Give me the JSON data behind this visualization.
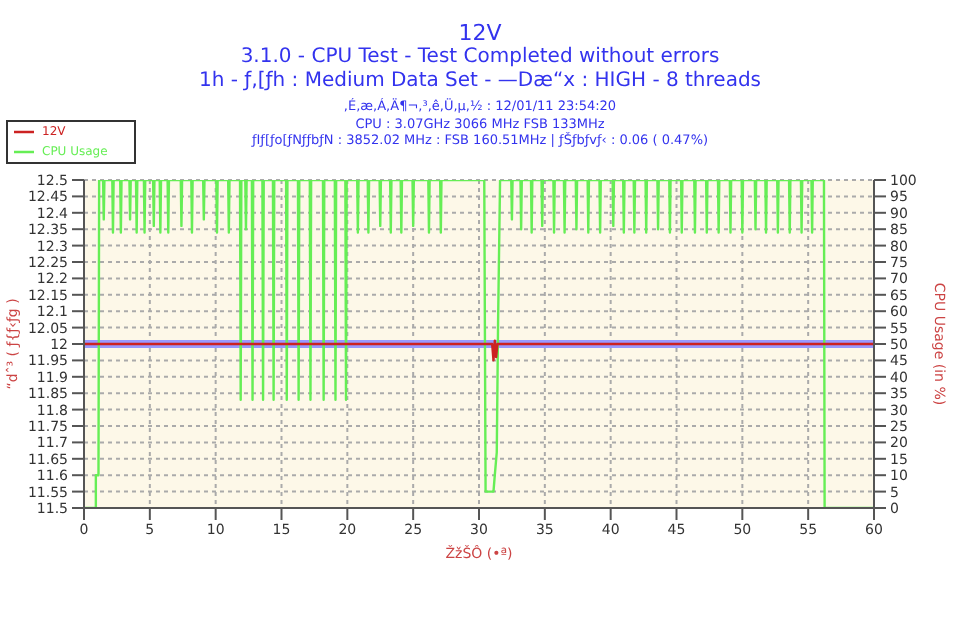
{
  "chart_data": {
    "type": "line",
    "title": "12V",
    "subtitle": "3.1.0 - CPU Test - Test Completed without errors\n1h - ƒ‚[ƒh : Medium Data Set - —Dæ“x : HIGH - 8 threads",
    "annotations": [
      ",É,æ,Á,Ä¶¬,³,ê,Ü,µ,½ : 12/01/11 23:54:20",
      "CPU : 3.07GHz 3066 MHz FSB 133MHz",
      "ƒIƒ[ƒo[ƒNƒƒbƒN : 3852.02 MHz : FSB 160.51MHz | ƒŠƒbƒvƒ‹ : 0.06 ( 0.47%)"
    ],
    "xlabel": "ŽžŠÔ (•ª)",
    "ylabel": "“dˆ³ ( ƒ{ƒ‹ƒg )",
    "y2label": "CPU Usage (in %)",
    "xlim": [
      0,
      60
    ],
    "xticks": [
      0,
      5,
      10,
      15,
      20,
      25,
      30,
      35,
      40,
      45,
      50,
      55,
      60
    ],
    "ylim": [
      11.5,
      12.5
    ],
    "yticks": [
      11.5,
      11.55,
      11.6,
      11.65,
      11.7,
      11.75,
      11.8,
      11.85,
      11.9,
      11.95,
      12,
      12.05,
      12.1,
      12.15,
      12.2,
      12.25,
      12.3,
      12.35,
      12.4,
      12.45,
      12.5
    ],
    "y2lim": [
      0,
      100
    ],
    "y2ticks": [
      0,
      5,
      10,
      15,
      20,
      25,
      30,
      35,
      40,
      45,
      50,
      55,
      60,
      65,
      70,
      75,
      80,
      85,
      90,
      95,
      100
    ],
    "grid": true,
    "legend": "top left",
    "ref_lines": [
      {
        "axis": "y",
        "value": 12,
        "color": "#9999ff"
      }
    ],
    "series": [
      {
        "name": "CPU Usage",
        "color": "#66ee55",
        "axis": "y2",
        "x": [
          0,
          0.9,
          0.9,
          1.1,
          1.15,
          1.45,
          1.5,
          1.55,
          2.15,
          2.2,
          2.25,
          2.75,
          2.8,
          2.85,
          3.45,
          3.5,
          3.55,
          3.95,
          4.0,
          4.05,
          4.55,
          4.6,
          4.65,
          5.25,
          5.3,
          5.35,
          5.75,
          5.8,
          5.85,
          6.35,
          6.4,
          6.45,
          7.35,
          7.4,
          7.45,
          8.15,
          8.2,
          8.25,
          9.05,
          9.1,
          9.15,
          10.05,
          10.1,
          10.15,
          10.95,
          11.0,
          11.05,
          11.85,
          11.9,
          11.95,
          12.25,
          12.3,
          12.35,
          12.75,
          12.8,
          12.85,
          13.55,
          13.6,
          13.65,
          14.35,
          14.4,
          14.45,
          15.35,
          15.4,
          15.45,
          16.25,
          16.3,
          16.35,
          17.15,
          17.2,
          17.25,
          18.15,
          18.2,
          18.25,
          19.05,
          19.1,
          19.15,
          19.85,
          19.9,
          19.95,
          20.75,
          20.8,
          20.85,
          21.55,
          21.6,
          21.65,
          22.45,
          22.5,
          22.55,
          23.25,
          23.3,
          23.35,
          24.05,
          24.1,
          24.15,
          24.95,
          25.0,
          25.05,
          26.15,
          26.2,
          26.25,
          27.05,
          27.1,
          27.15,
          30.4,
          30.5,
          31.1,
          31.2,
          31.35,
          31.45,
          31.6,
          32.45,
          32.5,
          32.55,
          33.15,
          33.2,
          33.25,
          33.95,
          34.0,
          34.05,
          34.75,
          34.8,
          34.85,
          35.65,
          35.7,
          35.75,
          36.45,
          36.5,
          36.55,
          37.35,
          37.4,
          37.45,
          38.25,
          38.3,
          38.35,
          39.15,
          39.2,
          39.25,
          40.15,
          40.2,
          40.25,
          40.95,
          41.0,
          41.05,
          41.75,
          41.8,
          41.85,
          42.65,
          42.7,
          42.75,
          43.55,
          43.6,
          43.65,
          44.45,
          44.5,
          44.55,
          45.35,
          45.4,
          45.45,
          46.35,
          46.4,
          46.45,
          47.25,
          47.3,
          47.35,
          48.15,
          48.2,
          48.25,
          49.05,
          49.1,
          49.15,
          49.95,
          50.0,
          50.05,
          50.95,
          51.0,
          51.05,
          51.75,
          51.8,
          51.85,
          52.65,
          52.7,
          52.75,
          53.55,
          53.6,
          53.65,
          54.45,
          54.5,
          54.55,
          55.25,
          55.3,
          55.35,
          56.2,
          56.25,
          60
        ],
        "values": [
          0,
          0,
          10,
          10,
          100,
          100,
          88,
          100,
          100,
          84,
          100,
          100,
          84,
          100,
          100,
          88,
          100,
          100,
          84,
          100,
          100,
          84,
          100,
          100,
          86,
          100,
          100,
          84,
          100,
          100,
          84,
          100,
          100,
          86,
          100,
          100,
          84,
          100,
          100,
          88,
          100,
          100,
          84,
          100,
          100,
          84,
          100,
          100,
          33,
          100,
          100,
          85,
          100,
          100,
          33,
          100,
          100,
          33,
          100,
          100,
          33,
          100,
          100,
          33,
          100,
          100,
          33,
          100,
          100,
          33,
          100,
          100,
          33,
          100,
          100,
          33,
          100,
          100,
          33,
          100,
          100,
          84,
          100,
          100,
          84,
          100,
          100,
          86,
          100,
          100,
          84,
          100,
          100,
          84,
          100,
          100,
          86,
          100,
          100,
          84,
          100,
          100,
          84,
          100,
          100,
          5,
          5,
          10,
          17,
          57,
          100,
          100,
          88,
          100,
          100,
          85,
          100,
          100,
          84,
          100,
          100,
          86,
          100,
          100,
          84,
          100,
          100,
          84,
          100,
          100,
          85,
          100,
          100,
          84,
          100,
          100,
          84,
          100,
          100,
          86,
          100,
          100,
          84,
          100,
          100,
          84,
          100,
          100,
          84,
          100,
          100,
          85,
          100,
          100,
          84,
          100,
          100,
          84,
          100,
          100,
          84,
          100,
          100,
          84,
          100,
          100,
          84,
          100,
          100,
          84,
          100,
          100,
          84,
          100,
          100,
          85,
          100,
          100,
          84,
          100,
          100,
          84,
          100,
          100,
          84,
          100,
          100,
          84,
          100,
          100,
          84,
          100,
          100,
          0,
          0
        ]
      },
      {
        "name": "12V",
        "color": "#cc2222",
        "x": [
          0,
          31,
          31.1,
          31.2,
          31.3,
          31.4,
          31.5,
          60
        ],
        "values": [
          12,
          12,
          11.95,
          12.01,
          11.96,
          12,
          12,
          12
        ]
      }
    ]
  }
}
